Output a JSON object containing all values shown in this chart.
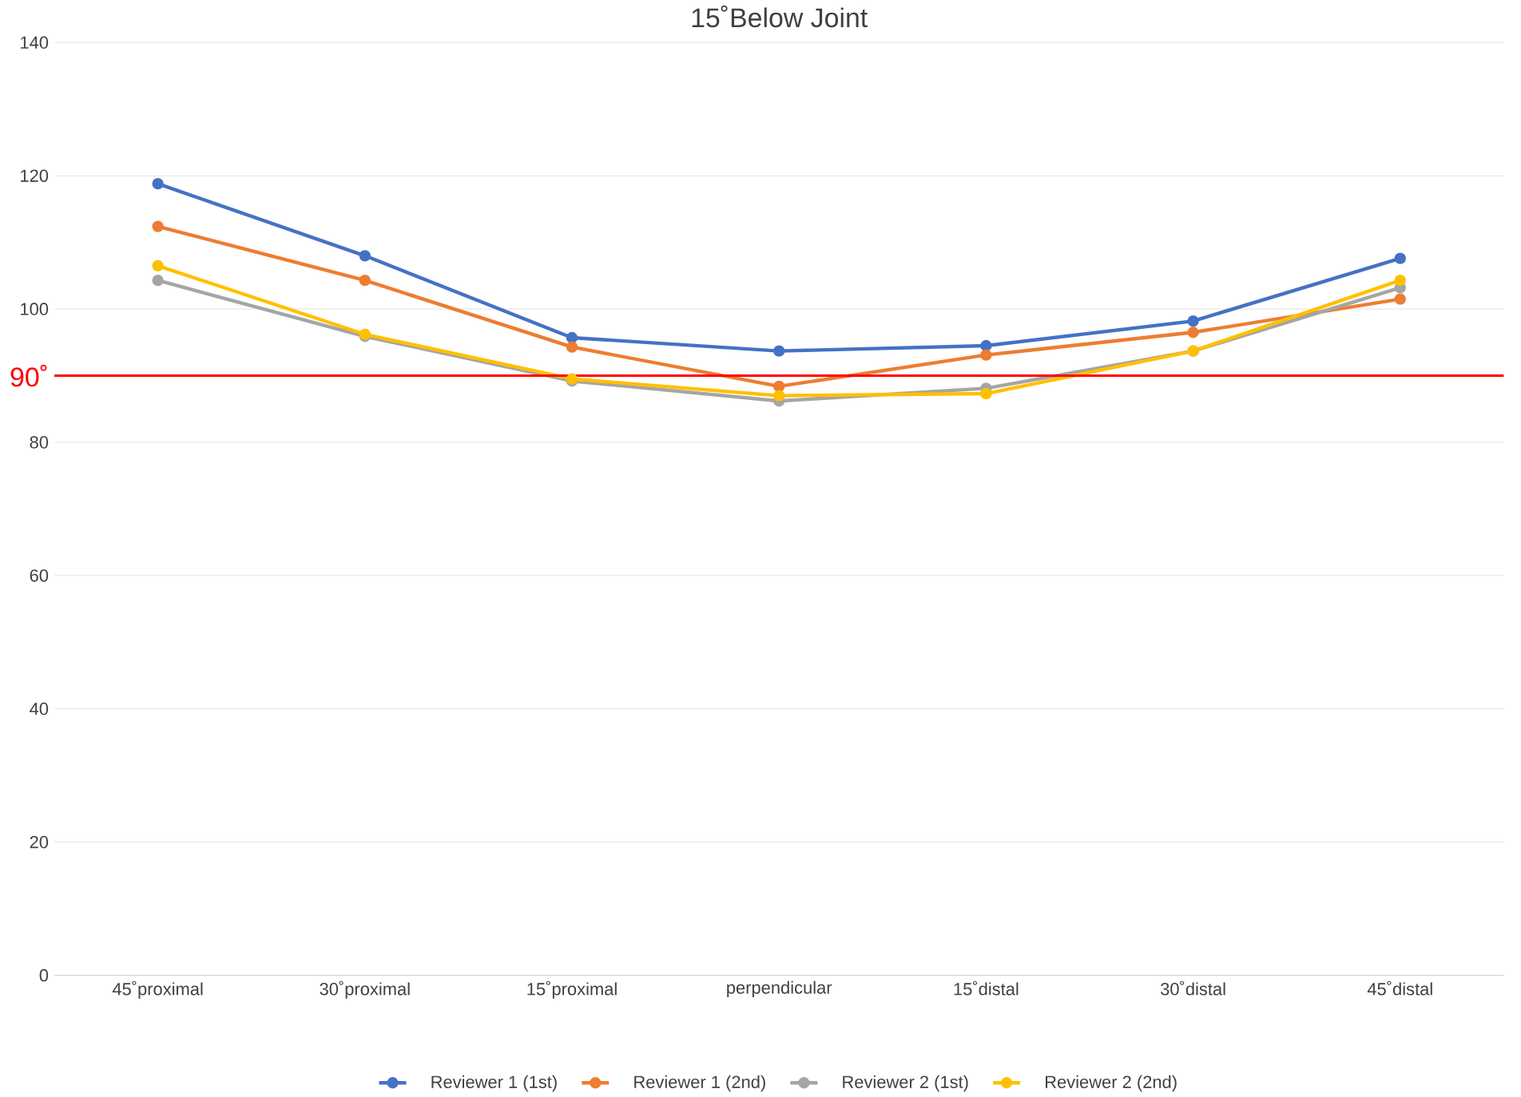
{
  "chart_data": {
    "type": "line",
    "title": "15˚Below Joint",
    "categories": [
      "45˚proximal",
      "30˚proximal",
      "15˚proximal",
      "perpendicular",
      "15˚distal",
      "30˚distal",
      "45˚distal"
    ],
    "series": [
      {
        "name": "Reviewer 1 (1st)",
        "color": "#4472c4",
        "values": [
          118.8,
          108,
          95.7,
          93.7,
          94.5,
          98.2,
          107.6
        ]
      },
      {
        "name": "Reviewer 1 (2nd)",
        "color": "#ed7d31",
        "values": [
          112.4,
          104.3,
          94.3,
          88.4,
          93.1,
          96.5,
          101.5
        ]
      },
      {
        "name": "Reviewer 2 (1st)",
        "color": "#a5a5a5",
        "values": [
          104.3,
          95.9,
          89.2,
          86.2,
          88.1,
          93.7,
          103.2
        ]
      },
      {
        "name": "Reviewer 2 (2nd)",
        "color": "#ffc000",
        "values": [
          106.5,
          96.2,
          89.5,
          87.0,
          87.3,
          93.7,
          104.3
        ]
      }
    ],
    "ylim": [
      0,
      140
    ],
    "yticks": [
      0,
      20,
      40,
      60,
      80,
      100,
      120,
      140
    ],
    "grid": "y",
    "legend": "bottom",
    "marker": "circle",
    "line_style": "solid",
    "ref_lines": [
      {
        "axis": "y",
        "value": 90,
        "label": "90˚",
        "color": "#ff0000"
      }
    ]
  }
}
